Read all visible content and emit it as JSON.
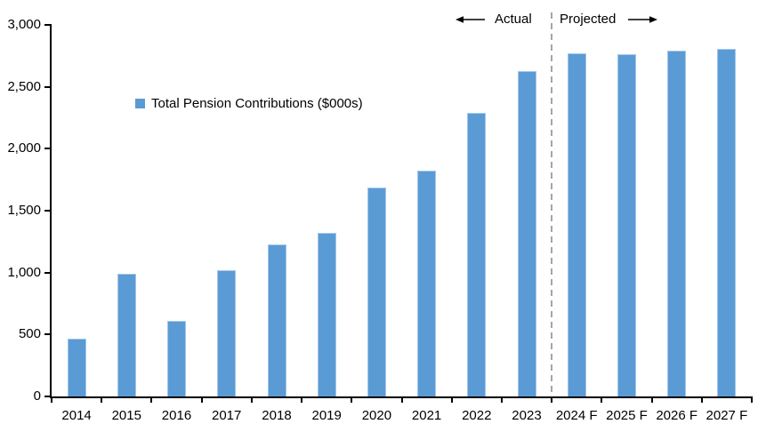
{
  "chart_data": {
    "type": "bar",
    "title": "",
    "series_name": "Total Pension Contributions ($000s)",
    "categories": [
      "2014",
      "2015",
      "2016",
      "2017",
      "2018",
      "2019",
      "2020",
      "2021",
      "2022",
      "2023",
      "2024 F",
      "2025 F",
      "2026 F",
      "2027 F"
    ],
    "values": [
      470,
      990,
      610,
      1020,
      1230,
      1320,
      1690,
      1820,
      2290,
      2630,
      2770,
      2760,
      2790,
      2810
    ],
    "ylim": [
      0,
      3000
    ],
    "ytick_interval": 500,
    "ytick_labels": [
      "0",
      "500",
      "1,000",
      "1,500",
      "2,000",
      "2,500",
      "3,000"
    ],
    "grid": false,
    "legend_position": "inside-upper-left",
    "divider_after_category_index": 9,
    "annotations": {
      "actual_label": "Actual",
      "projected_label": "Projected"
    },
    "colors": {
      "bar_fill": "#5B9BD5",
      "bar_border": "#A3C6E8",
      "divider": "#A6A6A6",
      "axis": "#000000",
      "text": "#000000"
    }
  }
}
